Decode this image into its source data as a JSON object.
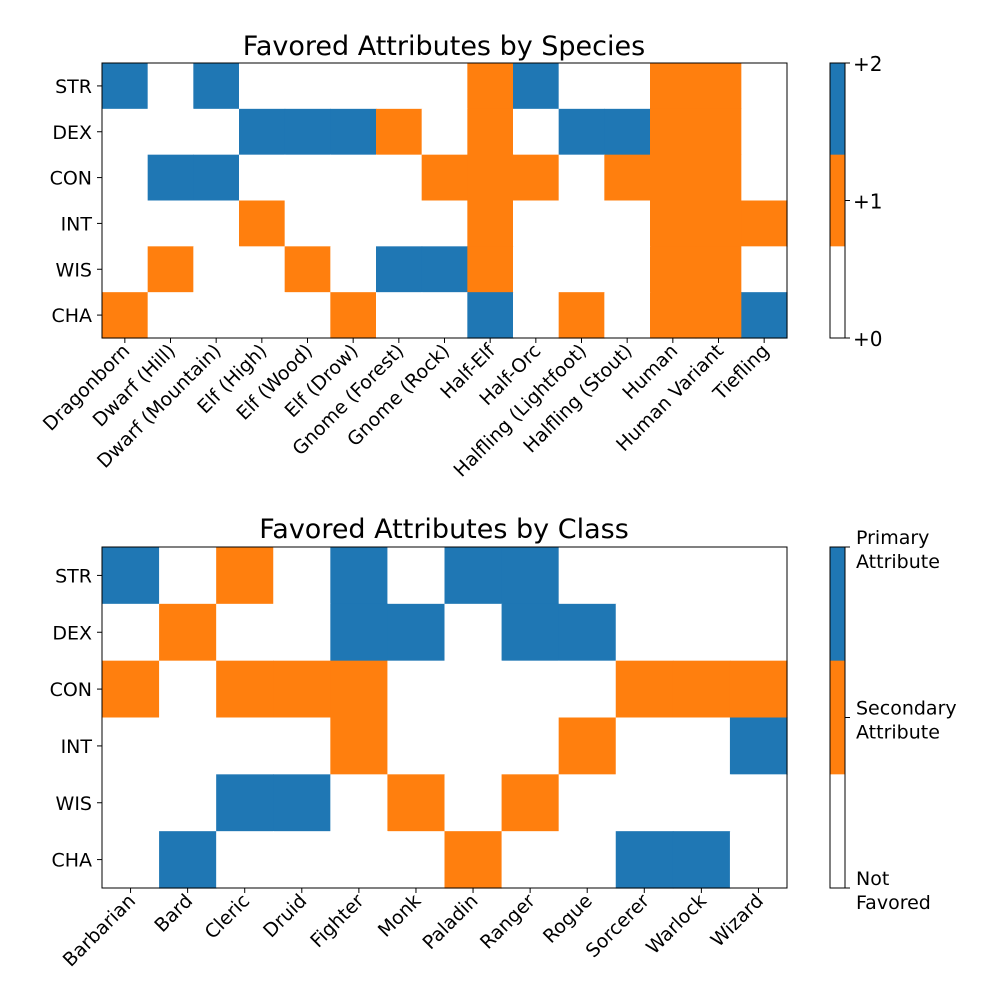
{
  "colors": {
    "zero": "#ffffff",
    "secondary": "#ff7f0e",
    "primary": "#1f77b4"
  },
  "chart_data": [
    {
      "type": "heatmap",
      "title": "Favored Attributes by Species",
      "x_categories": [
        "Dragonborn",
        "Dwarf (Hill)",
        "Dwarf (Mountain)",
        "Elf (High)",
        "Elf (Wood)",
        "Elf (Drow)",
        "Gnome (Forest)",
        "Gnome (Rock)",
        "Half-Elf",
        "Half-Orc",
        "Halfling (Lightfoot)",
        "Halfling (Stout)",
        "Human",
        "Human Variant",
        "Tiefling"
      ],
      "y_categories": [
        "STR",
        "DEX",
        "CON",
        "INT",
        "WIS",
        "CHA"
      ],
      "values": [
        [
          2,
          0,
          2,
          0,
          0,
          0,
          0,
          0,
          1,
          2,
          0,
          0,
          1,
          1,
          0
        ],
        [
          0,
          0,
          0,
          2,
          2,
          2,
          1,
          0,
          1,
          0,
          2,
          2,
          1,
          1,
          0
        ],
        [
          0,
          2,
          2,
          0,
          0,
          0,
          0,
          1,
          1,
          1,
          0,
          1,
          1,
          1,
          0
        ],
        [
          0,
          0,
          0,
          1,
          0,
          0,
          0,
          0,
          1,
          0,
          0,
          0,
          1,
          1,
          1
        ],
        [
          0,
          1,
          0,
          0,
          1,
          0,
          2,
          2,
          1,
          0,
          0,
          0,
          1,
          1,
          0
        ],
        [
          1,
          0,
          0,
          0,
          0,
          1,
          0,
          0,
          2,
          0,
          1,
          0,
          1,
          1,
          2
        ]
      ],
      "colorbar": {
        "ticks": [
          0,
          1,
          2
        ],
        "labels": [
          "+0",
          "+1",
          "+2"
        ]
      }
    },
    {
      "type": "heatmap",
      "title": "Favored Attributes by Class",
      "x_categories": [
        "Barbarian",
        "Bard",
        "Cleric",
        "Druid",
        "Fighter",
        "Monk",
        "Paladin",
        "Ranger",
        "Rogue",
        "Sorcerer",
        "Warlock",
        "Wizard"
      ],
      "y_categories": [
        "STR",
        "DEX",
        "CON",
        "INT",
        "WIS",
        "CHA"
      ],
      "values": [
        [
          2,
          0,
          1,
          0,
          2,
          0,
          2,
          2,
          0,
          0,
          0,
          0
        ],
        [
          0,
          1,
          0,
          0,
          2,
          2,
          0,
          2,
          2,
          0,
          0,
          0
        ],
        [
          1,
          0,
          1,
          1,
          1,
          0,
          0,
          0,
          0,
          1,
          1,
          1
        ],
        [
          0,
          0,
          0,
          0,
          1,
          0,
          0,
          0,
          1,
          0,
          0,
          2
        ],
        [
          0,
          0,
          2,
          2,
          0,
          1,
          0,
          1,
          0,
          0,
          0,
          0
        ],
        [
          0,
          2,
          0,
          0,
          0,
          0,
          1,
          0,
          0,
          2,
          2,
          0
        ]
      ],
      "colorbar": {
        "ticks": [
          0,
          1,
          2
        ],
        "labels": [
          "Not Favored",
          "Secondary Attribute",
          "Primary Attribute"
        ],
        "label_lines": [
          [
            "Not",
            "Favored"
          ],
          [
            "Secondary",
            "Attribute"
          ],
          [
            "Primary",
            "Attribute"
          ]
        ]
      }
    }
  ]
}
